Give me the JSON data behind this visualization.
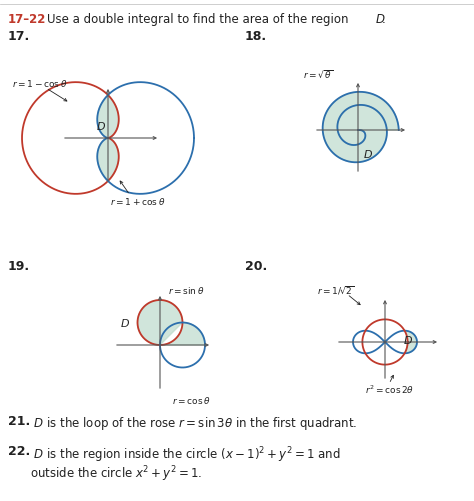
{
  "curve_red": "#c0392b",
  "curve_blue": "#2c6fad",
  "fill_green": "#b8d8c8",
  "fill_alpha": 0.65,
  "header_num_color": "#c0392b",
  "text_color": "#222222",
  "axis_color": "#555555",
  "bg_color": "#ffffff"
}
